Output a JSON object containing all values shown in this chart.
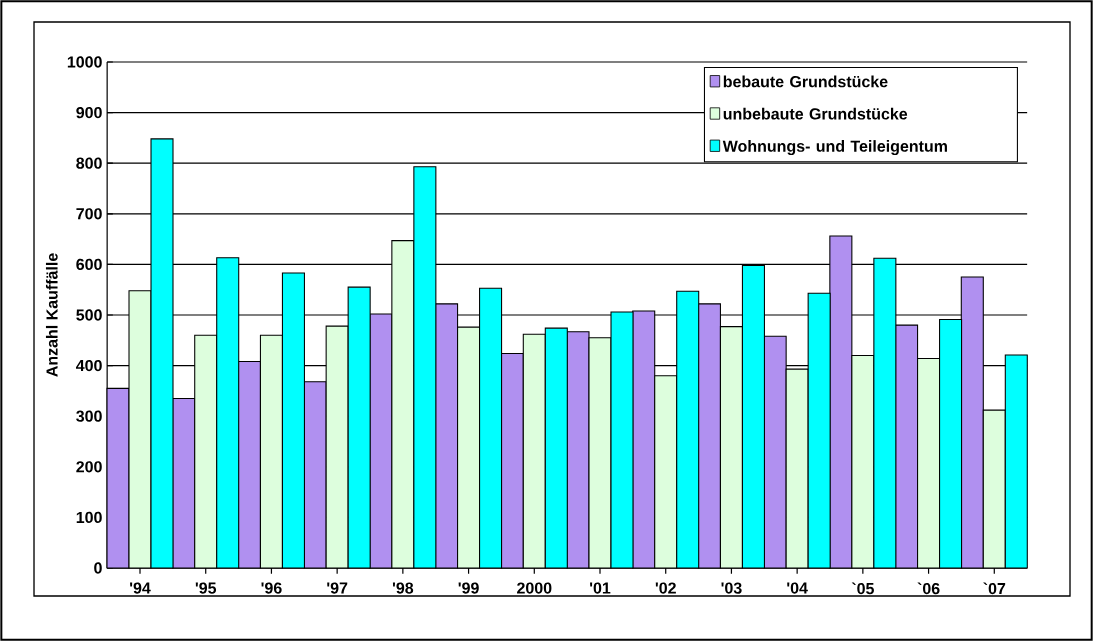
{
  "chart_data": {
    "type": "bar",
    "ylabel": "Anzahl Kauffälle",
    "categories": [
      "'94",
      "'95",
      "'96",
      "'97",
      "'98",
      "'99",
      "2000",
      "'01",
      "'02",
      "'03",
      "'04",
      "`05",
      "`06",
      "`07"
    ],
    "series": [
      {
        "name": "bebaute Grundstücke",
        "color": "#b090f0",
        "values": [
          355,
          335,
          408,
          368,
          502,
          522,
          424,
          467,
          508,
          522,
          458,
          656,
          480,
          575
        ]
      },
      {
        "name": "unbebaute Grundstücke",
        "color": "#ddfedd",
        "values": [
          548,
          460,
          460,
          478,
          647,
          476,
          462,
          455,
          380,
          477,
          393,
          420,
          414,
          312
        ]
      },
      {
        "name": "Wohnungs- und Teileigentum",
        "color": "#00ffff",
        "values": [
          848,
          613,
          583,
          555,
          793,
          553,
          474,
          506,
          547,
          598,
          543,
          612,
          491,
          421
        ]
      }
    ],
    "ylim": [
      0,
      1000
    ],
    "yticks": [
      0,
      100,
      200,
      300,
      400,
      500,
      600,
      700,
      800,
      900,
      1000
    ],
    "grid": "y",
    "legend": "top right"
  }
}
